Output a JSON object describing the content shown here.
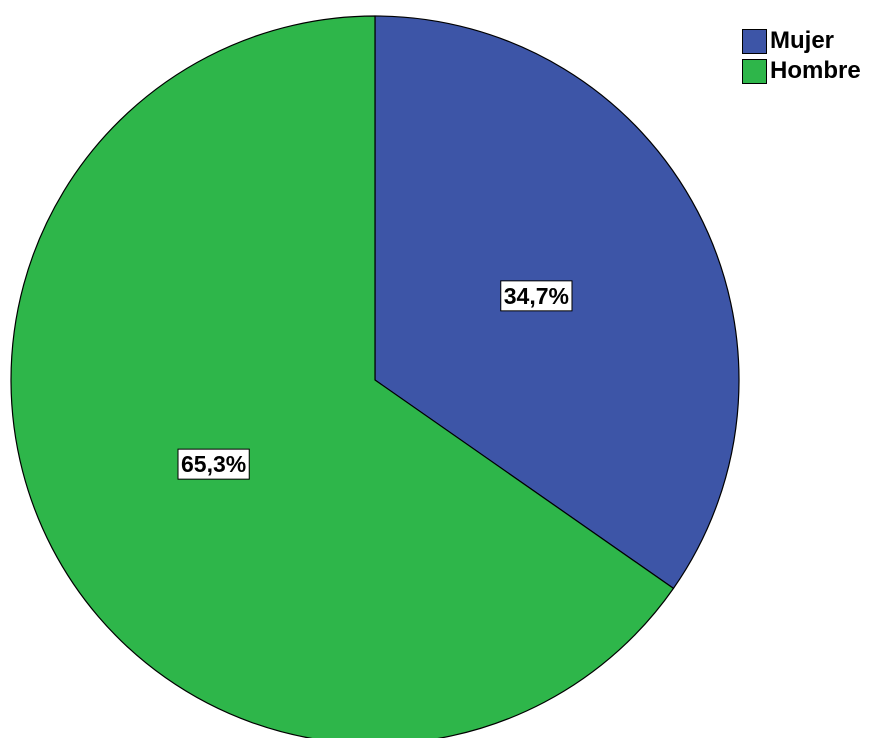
{
  "chart_data": {
    "type": "pie",
    "title": "",
    "categories": [
      "Mujer",
      "Hombre"
    ],
    "values": [
      34.7,
      65.3
    ],
    "labels": [
      "34,7%",
      "65,3%"
    ],
    "colors": [
      "#3d55a7",
      "#2eb64a"
    ],
    "start_angle_deg": 0,
    "direction": "clockwise",
    "legend_position": "top-right",
    "legend": [
      {
        "label": "Mujer",
        "color": "#3d55a7"
      },
      {
        "label": "Hombre",
        "color": "#2eb64a"
      }
    ]
  }
}
